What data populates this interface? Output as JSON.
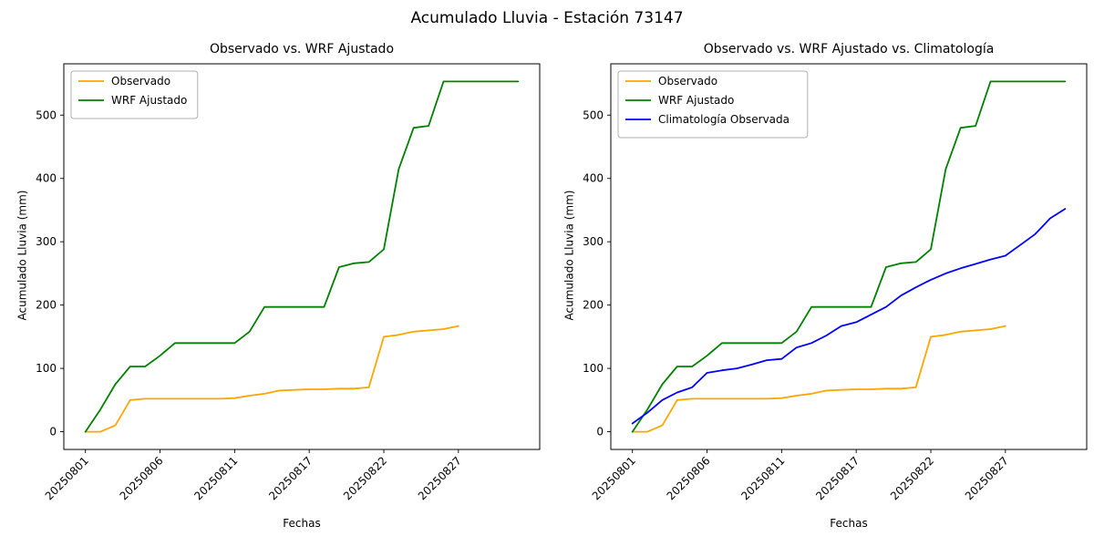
{
  "figure": {
    "title": "Acumulado Lluvia - Estación 73147"
  },
  "chart_data": [
    {
      "type": "line",
      "title": "Observado vs. WRF Ajustado",
      "xlabel": "Fechas",
      "ylabel": "Acumulado Lluvia (mm)",
      "x": [
        "20250801",
        "20250802",
        "20250803",
        "20250804",
        "20250805",
        "20250806",
        "20250807",
        "20250808",
        "20250809",
        "20250810",
        "20250811",
        "20250813",
        "20250814",
        "20250815",
        "20250816",
        "20250817",
        "20250818",
        "20250819",
        "20250820",
        "20250821",
        "20250822",
        "20250823",
        "20250824",
        "20250825",
        "20250826",
        "20250827",
        "20250828",
        "20250829",
        "20250830",
        "20250831"
      ],
      "x_tick_indices": [
        0,
        5,
        10,
        15,
        20,
        25
      ],
      "x_tick_labels": [
        "20250801",
        "20250806",
        "20250811",
        "20250817",
        "20250822",
        "20250827"
      ],
      "ylim": [
        -28,
        581
      ],
      "yticks": [
        0,
        100,
        200,
        300,
        400,
        500
      ],
      "grid": false,
      "legend_position": "upper left",
      "series": [
        {
          "name": "Observado",
          "color": "#ffa500",
          "values": [
            0,
            0,
            10,
            50,
            52,
            52,
            52,
            52,
            52,
            52,
            53,
            57,
            60,
            65,
            66,
            67,
            67,
            68,
            68,
            70,
            150,
            153,
            158,
            160,
            162,
            167
          ]
        },
        {
          "name": "WRF Ajustado",
          "color": "#008000",
          "values": [
            0,
            35,
            75,
            103,
            103,
            120,
            140,
            140,
            140,
            140,
            140,
            158,
            197,
            197,
            197,
            197,
            197,
            260,
            266,
            268,
            288,
            415,
            480,
            483,
            553,
            553,
            553,
            553,
            553,
            553
          ]
        }
      ]
    },
    {
      "type": "line",
      "title": "Observado vs. WRF Ajustado vs. Climatología",
      "xlabel": "Fechas",
      "ylabel": "Acumulado Lluvia (mm)",
      "x": [
        "20250801",
        "20250802",
        "20250803",
        "20250804",
        "20250805",
        "20250806",
        "20250807",
        "20250808",
        "20250809",
        "20250810",
        "20250811",
        "20250813",
        "20250814",
        "20250815",
        "20250816",
        "20250817",
        "20250818",
        "20250819",
        "20250820",
        "20250821",
        "20250822",
        "20250823",
        "20250824",
        "20250825",
        "20250826",
        "20250827",
        "20250828",
        "20250829",
        "20250830",
        "20250831"
      ],
      "x_tick_indices": [
        0,
        5,
        10,
        15,
        20,
        25
      ],
      "x_tick_labels": [
        "20250801",
        "20250806",
        "20250811",
        "20250817",
        "20250822",
        "20250827"
      ],
      "ylim": [
        -28,
        581
      ],
      "yticks": [
        0,
        100,
        200,
        300,
        400,
        500
      ],
      "grid": false,
      "legend_position": "upper left",
      "series": [
        {
          "name": "Observado",
          "color": "#ffa500",
          "values": [
            0,
            0,
            10,
            50,
            52,
            52,
            52,
            52,
            52,
            52,
            53,
            57,
            60,
            65,
            66,
            67,
            67,
            68,
            68,
            70,
            150,
            153,
            158,
            160,
            162,
            167
          ]
        },
        {
          "name": "WRF Ajustado",
          "color": "#008000",
          "values": [
            0,
            35,
            75,
            103,
            103,
            120,
            140,
            140,
            140,
            140,
            140,
            158,
            197,
            197,
            197,
            197,
            197,
            260,
            266,
            268,
            288,
            415,
            480,
            483,
            553,
            553,
            553,
            553,
            553,
            553
          ]
        },
        {
          "name": "Climatología Observada",
          "color": "#0000ff",
          "values": [
            13,
            30,
            50,
            62,
            70,
            93,
            97,
            100,
            106,
            113,
            115,
            133,
            140,
            152,
            167,
            173,
            185,
            197,
            215,
            228,
            240,
            250,
            258,
            265,
            272,
            278,
            295,
            312,
            337,
            352
          ]
        }
      ]
    }
  ]
}
